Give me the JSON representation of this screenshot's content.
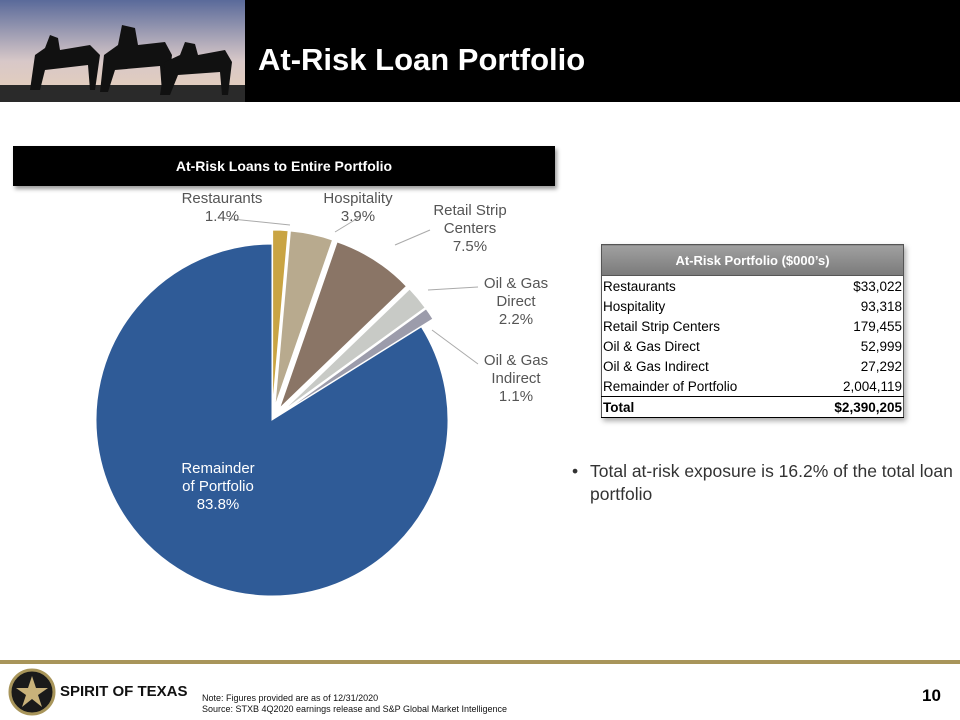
{
  "header": {
    "title": "At-Risk Loan Portfolio"
  },
  "chart_data": {
    "type": "pie",
    "title": "At-Risk Loans to Entire Portfolio",
    "categories": [
      "Restaurants",
      "Hospitality",
      "Retail Strip Centers",
      "Oil & Gas Direct",
      "Oil & Gas Indirect",
      "Remainder of Portfolio"
    ],
    "values": [
      1.4,
      3.9,
      7.5,
      2.2,
      1.1,
      83.8
    ],
    "value_labels": [
      "1.4%",
      "3.9%",
      "7.5%",
      "2.2%",
      "1.1%",
      "83.8%"
    ],
    "colors": [
      "#c9a443",
      "#b8aa8e",
      "#8a7566",
      "#c8cac6",
      "#9c9cab",
      "#2f5b97"
    ]
  },
  "table": {
    "title": "At-Risk Portfolio ($000’s)",
    "rows": [
      [
        "Restaurants",
        "$33,022"
      ],
      [
        "Hospitality",
        "93,318"
      ],
      [
        "Retail Strip Centers",
        "179,455"
      ],
      [
        "Oil & Gas Direct",
        "52,999"
      ],
      [
        "Oil & Gas Indirect",
        "27,292"
      ],
      [
        "Remainder of Portfolio",
        "2,004,119"
      ]
    ],
    "total": [
      "Total",
      "$2,390,205"
    ]
  },
  "bullets": [
    "Total at-risk exposure is 16.2% of the total loan portfolio"
  ],
  "footer": {
    "brand": "SPIRIT OF TEXAS",
    "note": "Note: Figures provided are as of 12/31/2020",
    "source": "Source: STXB 4Q2020 earnings release and S&P Global Market Intelligence",
    "page": "10"
  }
}
